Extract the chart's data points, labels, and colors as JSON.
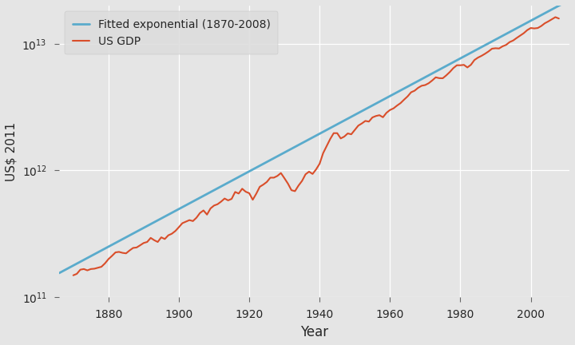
{
  "title": "",
  "xlabel": "Year",
  "ylabel": "US$ 2011",
  "legend_entries": [
    "US GDP",
    "Fitted exponential (1870-2008)"
  ],
  "gdp_color": "#d94e2a",
  "exp_color": "#5aabcc",
  "background_color": "#e5e5e5",
  "ylim_log": [
    100000000000.0,
    20000000000000.0
  ],
  "xlim": [
    1866,
    2011
  ],
  "grid_color": "white",
  "yticks": [
    100000000000.0,
    1000000000000.0,
    10000000000000.0
  ],
  "xticks": [
    1880,
    1900,
    1920,
    1940,
    1960,
    1980,
    2000
  ],
  "exp_start_year": 1866,
  "exp_end_year": 2011,
  "exp_A": 178000000000.0,
  "exp_growth_rate": 0.0342,
  "exp_base_year": 1870,
  "gdp_data": {
    "years": [
      1870,
      1871,
      1872,
      1873,
      1874,
      1875,
      1876,
      1877,
      1878,
      1879,
      1880,
      1881,
      1882,
      1883,
      1884,
      1885,
      1886,
      1887,
      1888,
      1889,
      1890,
      1891,
      1892,
      1893,
      1894,
      1895,
      1896,
      1897,
      1898,
      1899,
      1900,
      1901,
      1902,
      1903,
      1904,
      1905,
      1906,
      1907,
      1908,
      1909,
      1910,
      1911,
      1912,
      1913,
      1914,
      1915,
      1916,
      1917,
      1918,
      1919,
      1920,
      1921,
      1922,
      1923,
      1924,
      1925,
      1926,
      1927,
      1928,
      1929,
      1930,
      1931,
      1932,
      1933,
      1934,
      1935,
      1936,
      1937,
      1938,
      1939,
      1940,
      1941,
      1942,
      1943,
      1944,
      1945,
      1946,
      1947,
      1948,
      1949,
      1950,
      1951,
      1952,
      1953,
      1954,
      1955,
      1956,
      1957,
      1958,
      1959,
      1960,
      1961,
      1962,
      1963,
      1964,
      1965,
      1966,
      1967,
      1968,
      1969,
      1970,
      1971,
      1972,
      1973,
      1974,
      1975,
      1976,
      1977,
      1978,
      1979,
      1980,
      1981,
      1982,
      1983,
      1984,
      1985,
      1986,
      1987,
      1988,
      1989,
      1990,
      1991,
      1992,
      1993,
      1994,
      1995,
      1996,
      1997,
      1998,
      1999,
      2000,
      2001,
      2002,
      2003,
      2004,
      2005,
      2006,
      2007,
      2008
    ],
    "values": [
      149000000000.0,
      153000000000.0,
      165000000000.0,
      167000000000.0,
      163000000000.0,
      167000000000.0,
      168000000000.0,
      171000000000.0,
      174000000000.0,
      185000000000.0,
      200000000000.0,
      212000000000.0,
      226000000000.0,
      228000000000.0,
      224000000000.0,
      222000000000.0,
      234000000000.0,
      245000000000.0,
      247000000000.0,
      257000000000.0,
      268000000000.0,
      273000000000.0,
      294000000000.0,
      282000000000.0,
      273000000000.0,
      297000000000.0,
      288000000000.0,
      308000000000.0,
      317000000000.0,
      333000000000.0,
      357000000000.0,
      384000000000.0,
      395000000000.0,
      406000000000.0,
      399000000000.0,
      424000000000.0,
      462000000000.0,
      484000000000.0,
      449000000000.0,
      502000000000.0,
      529000000000.0,
      542000000000.0,
      568000000000.0,
      601000000000.0,
      581000000000.0,
      597000000000.0,
      677000000000.0,
      658000000000.0,
      718000000000.0,
      680000000000.0,
      662000000000.0,
      588000000000.0,
      656000000000.0,
      744000000000.0,
      774000000000.0,
      812000000000.0,
      878000000000.0,
      878000000000.0,
      906000000000.0,
      955000000000.0,
      869000000000.0,
      788000000000.0,
      699000000000.0,
      687000000000.0,
      760000000000.0,
      827000000000.0,
      933000000000.0,
      979000000000.0,
      939000000000.0,
      1020000000000.0,
      1130000000000.0,
      1370000000000.0,
      1560000000000.0,
      1770000000000.0,
      1970000000000.0,
      1970000000000.0,
      1790000000000.0,
      1850000000000.0,
      1960000000000.0,
      1930000000000.0,
      2090000000000.0,
      2260000000000.0,
      2350000000000.0,
      2460000000000.0,
      2430000000000.0,
      2620000000000.0,
      2690000000000.0,
      2730000000000.0,
      2630000000000.0,
      2850000000000.0,
      3000000000000.0,
      3090000000000.0,
      3250000000000.0,
      3400000000000.0,
      3620000000000.0,
      3840000000000.0,
      4140000000000.0,
      4260000000000.0,
      4490000000000.0,
      4660000000000.0,
      4720000000000.0,
      4880000000000.0,
      5130000000000.0,
      5430000000000.0,
      5350000000000.0,
      5340000000000.0,
      5630000000000.0,
      5980000000000.0,
      6420000000000.0,
      6760000000000.0,
      6760000000000.0,
      6810000000000.0,
      6500000000000.0,
      6820000000000.0,
      7440000000000.0,
      7770000000000.0,
      8020000000000.0,
      8330000000000.0,
      8690000000000.0,
      9140000000000.0,
      9210000000000.0,
      9170000000000.0,
      9540000000000.0,
      9790000000000.0,
      10300000000000.0,
      10600000000000.0,
      11100000000000.0,
      11600000000000.0,
      12100000000000.0,
      12800000000000.0,
      13300000000000.0,
      13200000000000.0,
      13300000000000.0,
      13800000000000.0,
      14500000000000.0,
      15000000000000.0,
      15600000000000.0,
      16200000000000.0,
      15800000000000.0
    ]
  }
}
